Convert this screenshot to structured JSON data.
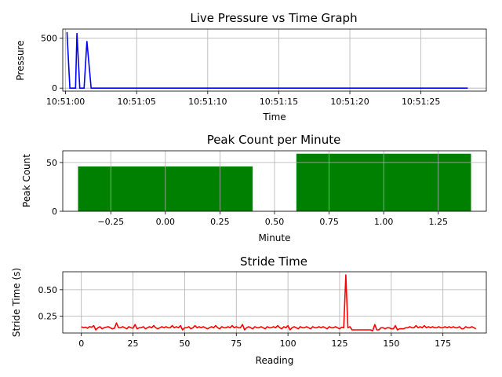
{
  "chart_data": [
    {
      "type": "line",
      "title": "Live Pressure vs Time Graph",
      "xlabel": "Time",
      "ylabel": "Pressure",
      "grid": true,
      "color": "#0000ff",
      "xlim": [
        "10:50:59.8",
        "10:51:29.6"
      ],
      "ylim": [
        -30,
        590
      ],
      "xticks": [
        "10:51:00",
        "10:51:05",
        "10:51:10",
        "10:51:15",
        "10:51:20",
        "10:51:25"
      ],
      "yticks": [
        0,
        500
      ],
      "x": [
        "10:51:00.1",
        "10:51:00.3",
        "10:51:00.5",
        "10:51:00.7",
        "10:51:00.8",
        "10:51:01.0",
        "10:51:01.3",
        "10:51:01.5",
        "10:51:01.8",
        "10:51:02.0",
        "10:51:28.3"
      ],
      "y": [
        560,
        0,
        0,
        0,
        550,
        0,
        0,
        470,
        0,
        0,
        0
      ]
    },
    {
      "type": "bar",
      "title": "Peak Count per Minute",
      "xlabel": "Minute",
      "ylabel": "Peak Count",
      "grid": true,
      "color": "#008000",
      "x": [
        0,
        1
      ],
      "values": [
        46,
        59
      ],
      "bar_width": 0.8,
      "xlim": [
        -0.47,
        1.47
      ],
      "ylim": [
        0,
        62
      ],
      "xticks": [
        "−0.25",
        "0.00",
        "0.25",
        "0.50",
        "0.75",
        "1.00",
        "1.25"
      ],
      "yticks": [
        0,
        50
      ]
    },
    {
      "type": "line",
      "title": "Stride Time",
      "xlabel": "Reading",
      "ylabel": "Stride Time (s)",
      "grid": true,
      "color": "#ff0000",
      "xlim": [
        -9,
        196
      ],
      "ylim": [
        0.09,
        0.67
      ],
      "xticks": [
        0,
        25,
        50,
        75,
        100,
        125,
        150,
        175
      ],
      "yticks": [
        0.25,
        0.5
      ],
      "y": [
        0.15,
        0.14,
        0.145,
        0.135,
        0.15,
        0.145,
        0.16,
        0.12,
        0.14,
        0.15,
        0.13,
        0.14,
        0.145,
        0.15,
        0.14,
        0.13,
        0.135,
        0.185,
        0.14,
        0.14,
        0.15,
        0.14,
        0.13,
        0.15,
        0.14,
        0.135,
        0.17,
        0.13,
        0.14,
        0.14,
        0.15,
        0.13,
        0.14,
        0.15,
        0.14,
        0.16,
        0.14,
        0.13,
        0.14,
        0.15,
        0.14,
        0.15,
        0.14,
        0.14,
        0.16,
        0.14,
        0.15,
        0.14,
        0.16,
        0.12,
        0.14,
        0.14,
        0.15,
        0.13,
        0.14,
        0.16,
        0.14,
        0.15,
        0.14,
        0.15,
        0.14,
        0.13,
        0.14,
        0.15,
        0.14,
        0.16,
        0.14,
        0.13,
        0.15,
        0.14,
        0.14,
        0.15,
        0.14,
        0.16,
        0.14,
        0.15,
        0.14,
        0.14,
        0.17,
        0.12,
        0.14,
        0.15,
        0.14,
        0.13,
        0.15,
        0.14,
        0.14,
        0.15,
        0.14,
        0.13,
        0.15,
        0.14,
        0.14,
        0.15,
        0.14,
        0.16,
        0.14,
        0.13,
        0.15,
        0.14,
        0.16,
        0.12,
        0.14,
        0.15,
        0.14,
        0.13,
        0.15,
        0.14,
        0.14,
        0.15,
        0.14,
        0.13,
        0.15,
        0.14,
        0.14,
        0.15,
        0.14,
        0.15,
        0.14,
        0.13,
        0.15,
        0.14,
        0.14,
        0.15,
        0.14,
        0.13,
        0.145,
        0.14,
        0.64,
        0.14,
        0.15,
        0.12,
        0.12,
        0.12,
        0.12,
        0.12,
        0.12,
        0.12,
        0.12,
        0.12,
        0.12,
        0.11,
        0.17,
        0.12,
        0.12,
        0.14,
        0.14,
        0.13,
        0.14,
        0.14,
        0.13,
        0.13,
        0.16,
        0.12,
        0.13,
        0.13,
        0.13,
        0.14,
        0.14,
        0.15,
        0.14,
        0.14,
        0.16,
        0.14,
        0.15,
        0.14,
        0.16,
        0.14,
        0.15,
        0.14,
        0.15,
        0.14,
        0.14,
        0.15,
        0.14,
        0.14,
        0.15,
        0.14,
        0.15,
        0.14,
        0.15,
        0.14,
        0.14,
        0.15,
        0.13,
        0.13,
        0.15,
        0.14,
        0.14,
        0.15,
        0.14,
        0.13
      ]
    }
  ]
}
